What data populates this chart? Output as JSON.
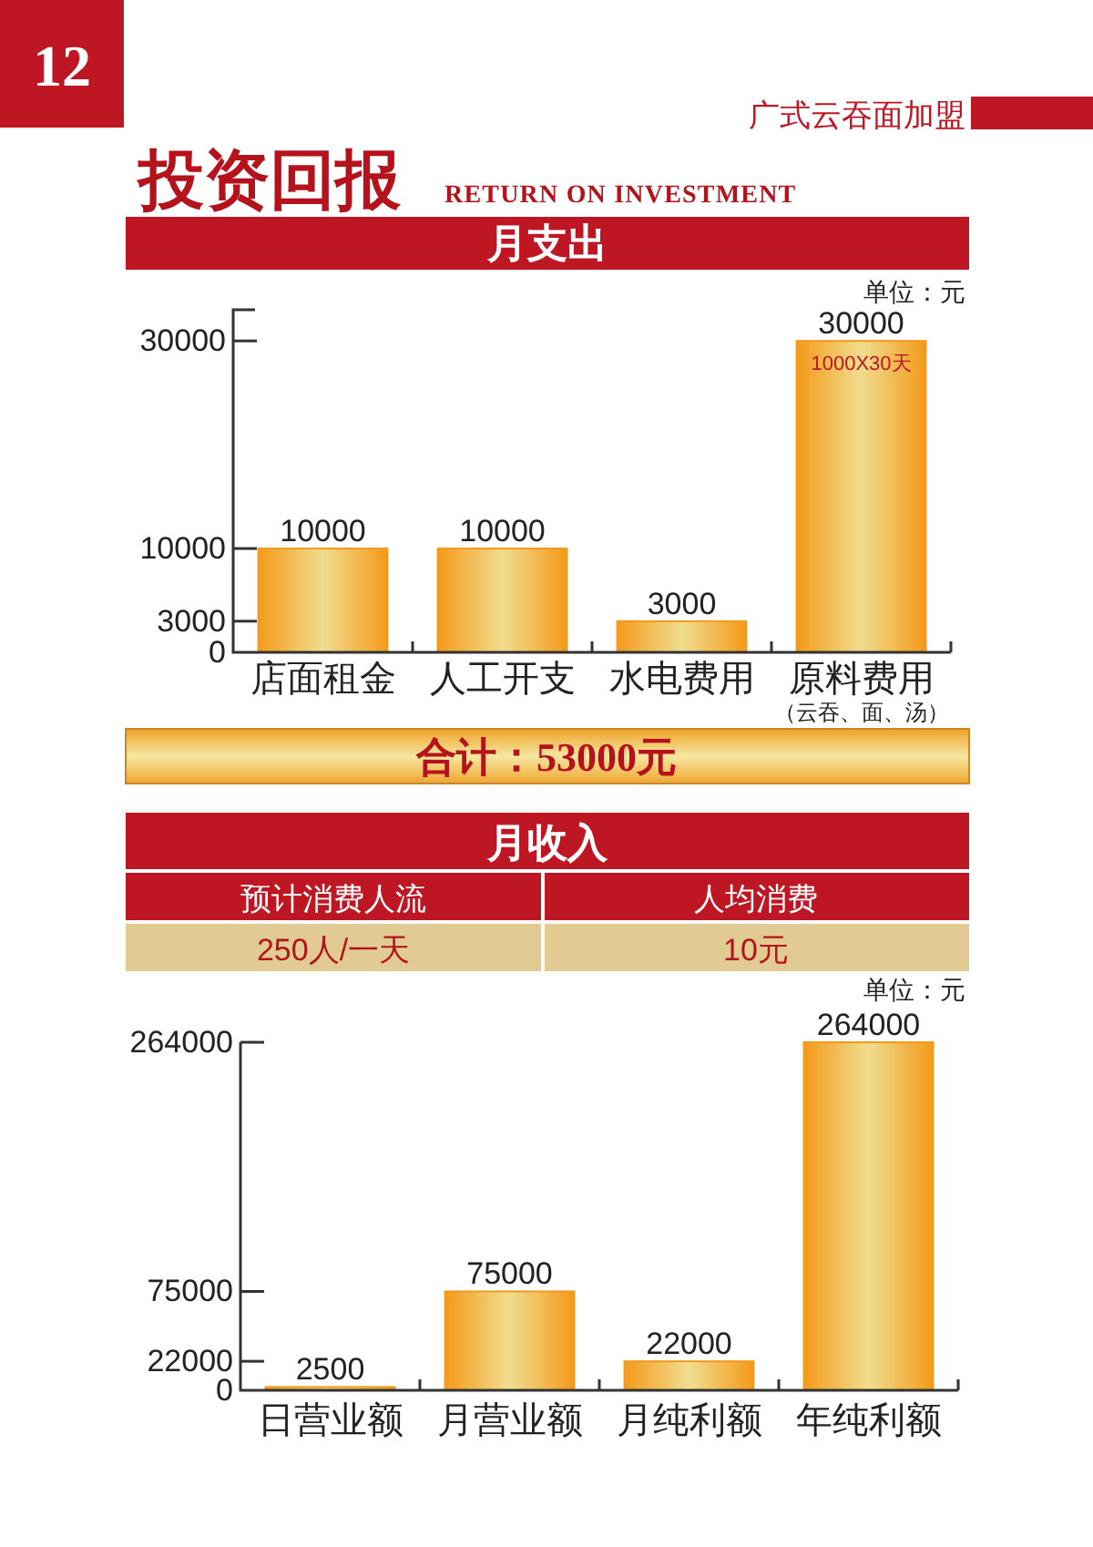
{
  "chart_data": [
    {
      "type": "bar",
      "title": "月支出",
      "categories": [
        "店面租金",
        "人工开支",
        "水电费用",
        "原料费用"
      ],
      "values": [
        10000,
        10000,
        3000,
        30000
      ],
      "color": "#f49a1a",
      "ylim": [
        0,
        33000
      ],
      "yticks": [
        0,
        3000,
        10000,
        30000
      ],
      "data_labels": true,
      "annotations": [
        "12",
        "广式云吞面加盟",
        "投资回报",
        "RETURN ON INVESTMENT",
        "单位：元",
        {
          "text": "1000X30天",
          "x": "原料费用",
          "y": 30000
        },
        "（云吞、面、汤）",
        "合计：53000元"
      ]
    },
    {
      "type": "bar",
      "title": "月收入",
      "categories": [
        "日营业额",
        "月营业额",
        "月纯利额",
        "年纯利额"
      ],
      "values": [
        2500,
        75000,
        22000,
        264000
      ],
      "color": "#f49a1a",
      "ylim": [
        0,
        264000
      ],
      "yticks": [
        0,
        22000,
        75000,
        264000
      ],
      "data_labels": true,
      "annotations": [
        "单位：元",
        "预计消费人流",
        "人均消费",
        "250人/一天",
        "10元"
      ]
    }
  ]
}
